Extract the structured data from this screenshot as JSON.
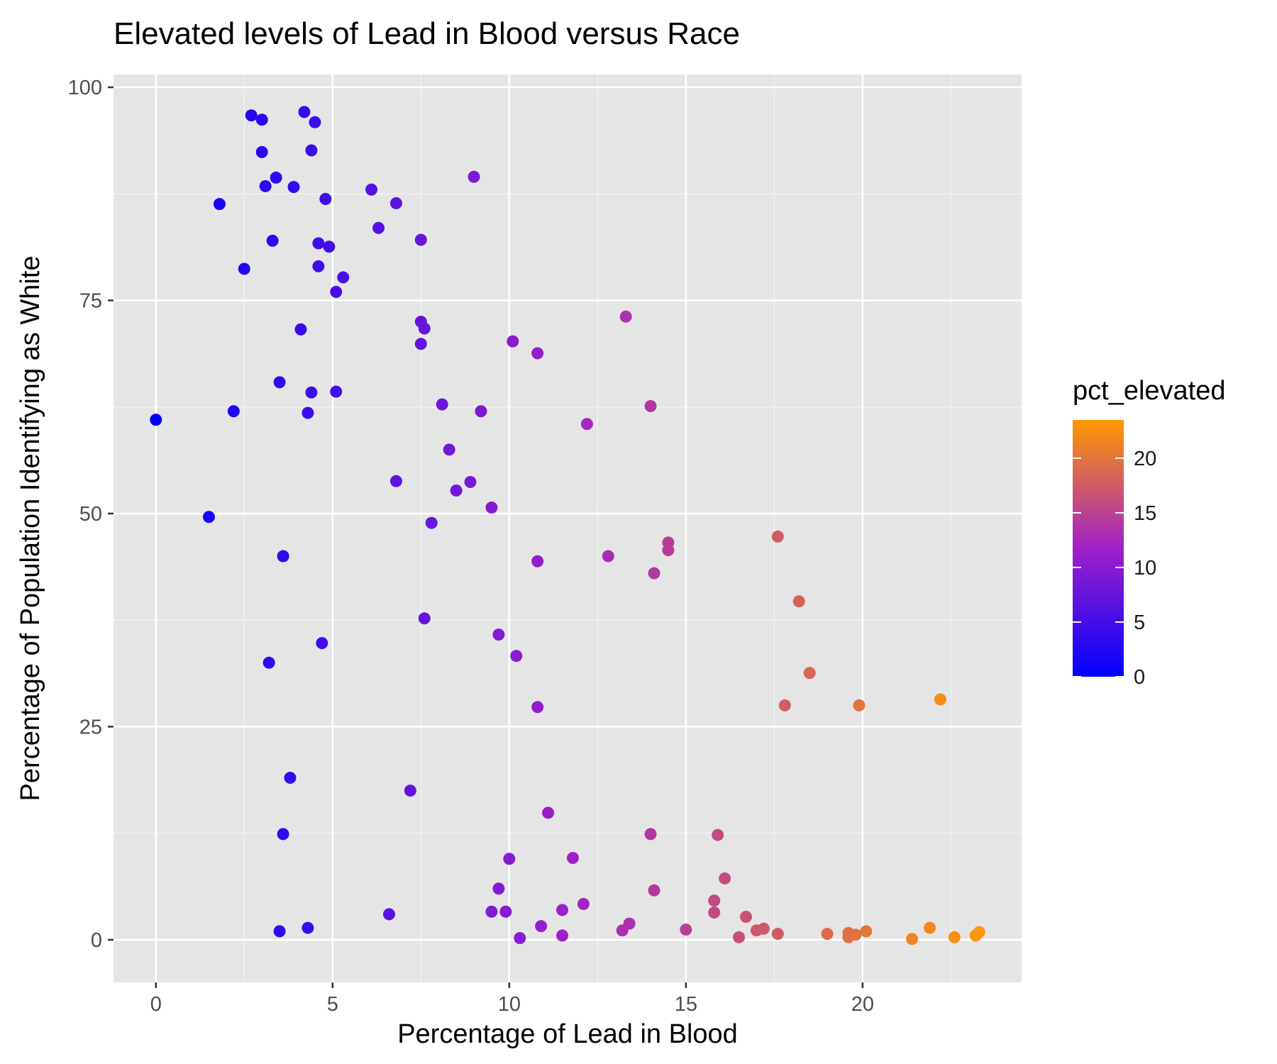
{
  "chart_data": {
    "type": "scatter",
    "title": "Elevated levels of Lead in Blood versus Race",
    "xlabel": "Percentage of Lead in Blood",
    "ylabel": "Percentage of Population Identifying as White",
    "xlim": [
      -1.2,
      24.5
    ],
    "ylim": [
      -5,
      101.5
    ],
    "xticks": [
      0,
      5,
      10,
      15,
      20
    ],
    "yticks": [
      0,
      25,
      50,
      75,
      100
    ],
    "grid": true,
    "background_color": "#e5e5e5",
    "color_scale": {
      "variable": "pct_elevated",
      "low_color": "#0000ff",
      "high_color": "#ff9900",
      "range": [
        0,
        23.5
      ],
      "breaks": [
        0,
        5,
        10,
        15,
        20
      ]
    },
    "legend_position": "right",
    "points": [
      {
        "x": 0.0,
        "y": 61.0
      },
      {
        "x": 1.5,
        "y": 49.6
      },
      {
        "x": 1.8,
        "y": 86.3
      },
      {
        "x": 2.2,
        "y": 62.0
      },
      {
        "x": 2.5,
        "y": 78.7
      },
      {
        "x": 2.7,
        "y": 96.7
      },
      {
        "x": 3.0,
        "y": 96.2
      },
      {
        "x": 3.0,
        "y": 92.4
      },
      {
        "x": 3.1,
        "y": 88.4
      },
      {
        "x": 3.3,
        "y": 82.0
      },
      {
        "x": 3.4,
        "y": 89.4
      },
      {
        "x": 3.9,
        "y": 88.3
      },
      {
        "x": 4.2,
        "y": 97.1
      },
      {
        "x": 4.4,
        "y": 92.6
      },
      {
        "x": 4.5,
        "y": 95.9
      },
      {
        "x": 4.8,
        "y": 86.9
      },
      {
        "x": 4.6,
        "y": 81.7
      },
      {
        "x": 4.9,
        "y": 81.3
      },
      {
        "x": 4.6,
        "y": 79.0
      },
      {
        "x": 5.3,
        "y": 77.7
      },
      {
        "x": 5.1,
        "y": 76.0
      },
      {
        "x": 4.1,
        "y": 71.6
      },
      {
        "x": 3.5,
        "y": 65.4
      },
      {
        "x": 4.4,
        "y": 64.2
      },
      {
        "x": 5.1,
        "y": 64.3
      },
      {
        "x": 4.3,
        "y": 61.8
      },
      {
        "x": 3.6,
        "y": 45.0
      },
      {
        "x": 4.7,
        "y": 34.8
      },
      {
        "x": 3.2,
        "y": 32.5
      },
      {
        "x": 3.8,
        "y": 19.0
      },
      {
        "x": 3.6,
        "y": 12.4
      },
      {
        "x": 3.5,
        "y": 1.0
      },
      {
        "x": 4.3,
        "y": 1.4
      },
      {
        "x": 6.1,
        "y": 88.0
      },
      {
        "x": 6.8,
        "y": 86.4
      },
      {
        "x": 6.3,
        "y": 83.5
      },
      {
        "x": 7.5,
        "y": 82.1
      },
      {
        "x": 9.0,
        "y": 89.5
      },
      {
        "x": 7.5,
        "y": 72.5
      },
      {
        "x": 7.6,
        "y": 71.7
      },
      {
        "x": 7.5,
        "y": 69.9
      },
      {
        "x": 8.1,
        "y": 62.8
      },
      {
        "x": 9.2,
        "y": 62.0
      },
      {
        "x": 8.3,
        "y": 57.5
      },
      {
        "x": 6.8,
        "y": 53.8
      },
      {
        "x": 8.9,
        "y": 53.7
      },
      {
        "x": 8.5,
        "y": 52.7
      },
      {
        "x": 9.5,
        "y": 50.7
      },
      {
        "x": 7.8,
        "y": 48.9
      },
      {
        "x": 7.6,
        "y": 37.7
      },
      {
        "x": 7.2,
        "y": 17.5
      },
      {
        "x": 6.6,
        "y": 3.0
      },
      {
        "x": 10.1,
        "y": 70.2
      },
      {
        "x": 10.8,
        "y": 68.8
      },
      {
        "x": 12.2,
        "y": 60.5
      },
      {
        "x": 13.3,
        "y": 73.1
      },
      {
        "x": 14.0,
        "y": 62.6
      },
      {
        "x": 10.8,
        "y": 44.4
      },
      {
        "x": 12.8,
        "y": 45.0
      },
      {
        "x": 14.1,
        "y": 43.0
      },
      {
        "x": 14.5,
        "y": 46.6
      },
      {
        "x": 14.5,
        "y": 45.7
      },
      {
        "x": 9.7,
        "y": 35.8
      },
      {
        "x": 10.2,
        "y": 33.3
      },
      {
        "x": 10.8,
        "y": 27.3
      },
      {
        "x": 11.1,
        "y": 14.9
      },
      {
        "x": 14.0,
        "y": 12.4
      },
      {
        "x": 15.9,
        "y": 12.3
      },
      {
        "x": 10.0,
        "y": 9.5
      },
      {
        "x": 11.8,
        "y": 9.6
      },
      {
        "x": 9.7,
        "y": 6.0
      },
      {
        "x": 14.1,
        "y": 5.8
      },
      {
        "x": 16.1,
        "y": 7.2
      },
      {
        "x": 15.8,
        "y": 4.6
      },
      {
        "x": 9.5,
        "y": 3.3
      },
      {
        "x": 9.9,
        "y": 3.3
      },
      {
        "x": 11.5,
        "y": 3.5
      },
      {
        "x": 12.1,
        "y": 4.2
      },
      {
        "x": 15.8,
        "y": 3.2
      },
      {
        "x": 16.7,
        "y": 2.7
      },
      {
        "x": 10.3,
        "y": 0.2
      },
      {
        "x": 10.9,
        "y": 1.6
      },
      {
        "x": 11.5,
        "y": 0.5
      },
      {
        "x": 13.2,
        "y": 1.1
      },
      {
        "x": 13.4,
        "y": 1.9
      },
      {
        "x": 15.0,
        "y": 1.2
      },
      {
        "x": 16.5,
        "y": 0.3
      },
      {
        "x": 17.0,
        "y": 1.1
      },
      {
        "x": 17.2,
        "y": 1.3
      },
      {
        "x": 17.6,
        "y": 0.7
      },
      {
        "x": 17.6,
        "y": 47.3
      },
      {
        "x": 18.2,
        "y": 39.7
      },
      {
        "x": 18.5,
        "y": 31.3
      },
      {
        "x": 17.8,
        "y": 27.5
      },
      {
        "x": 19.9,
        "y": 27.5
      },
      {
        "x": 22.2,
        "y": 28.2
      },
      {
        "x": 19.0,
        "y": 0.7
      },
      {
        "x": 19.6,
        "y": 0.8
      },
      {
        "x": 19.6,
        "y": 0.3
      },
      {
        "x": 19.8,
        "y": 0.6
      },
      {
        "x": 20.1,
        "y": 1.0
      },
      {
        "x": 21.4,
        "y": 0.1
      },
      {
        "x": 21.9,
        "y": 1.4
      },
      {
        "x": 22.6,
        "y": 0.3
      },
      {
        "x": 23.2,
        "y": 0.5
      },
      {
        "x": 23.3,
        "y": 0.9
      }
    ]
  }
}
